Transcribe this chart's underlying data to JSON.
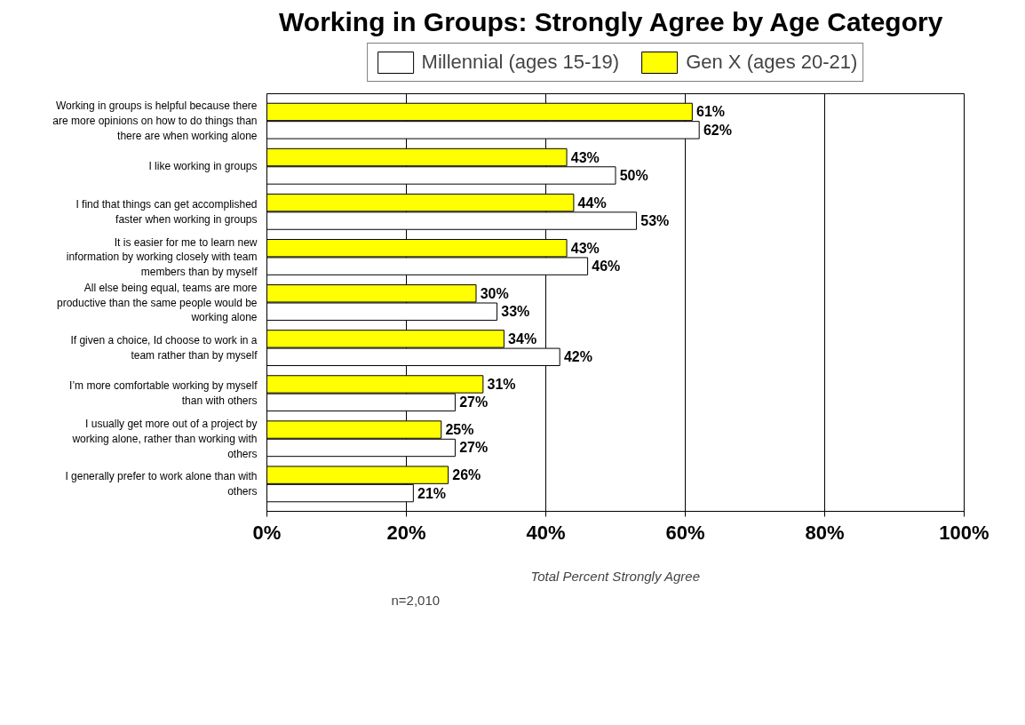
{
  "chart_data": {
    "type": "bar",
    "orientation": "horizontal",
    "title": "Working in Groups:  Strongly Agree by Age Category",
    "xlabel": "Total Percent Strongly Agree",
    "categories": [
      "Working in groups is helpful because there are more opinions on how to do things than there are when working alone",
      "I like working in groups",
      "I find that things can get accomplished faster when working in groups",
      "It is easier for me to learn new information by working closely with team members than by myself",
      "All else being equal, teams are more productive than the same people would be working alone",
      "If given a choice, Id choose to work in a team rather than by myself",
      "I’m more comfortable working by myself than with others",
      "I usually get more out of a project by working alone, rather than working with others",
      "I generally prefer to work alone than with others"
    ],
    "series": [
      {
        "name": "Millennial (ages 15-19)",
        "color": "#ffffff",
        "values": [
          62,
          50,
          53,
          46,
          33,
          42,
          27,
          27,
          21
        ],
        "value_labels": [
          "62%",
          "50%",
          "53%",
          "46%",
          "33%",
          "42%",
          "27%",
          "27%",
          "21%"
        ]
      },
      {
        "name": "Gen X (ages 20-21)",
        "color": "#ffff00",
        "values": [
          61,
          43,
          44,
          43,
          30,
          34,
          31,
          25,
          26
        ],
        "value_labels": [
          "61%",
          "43%",
          "44%",
          "43%",
          "30%",
          "34%",
          "31%",
          "25%",
          "26%"
        ]
      }
    ],
    "xlim": [
      0,
      100
    ],
    "xticks": [
      {
        "value": 0,
        "label": "0%"
      },
      {
        "value": 20,
        "label": "20%"
      },
      {
        "value": 40,
        "label": "40%"
      },
      {
        "value": 60,
        "label": "60%"
      },
      {
        "value": 80,
        "label": "80%"
      },
      {
        "value": 100,
        "label": "100%"
      }
    ],
    "grid": "x",
    "legend": "top",
    "annotations": [
      "n=2,010"
    ]
  }
}
